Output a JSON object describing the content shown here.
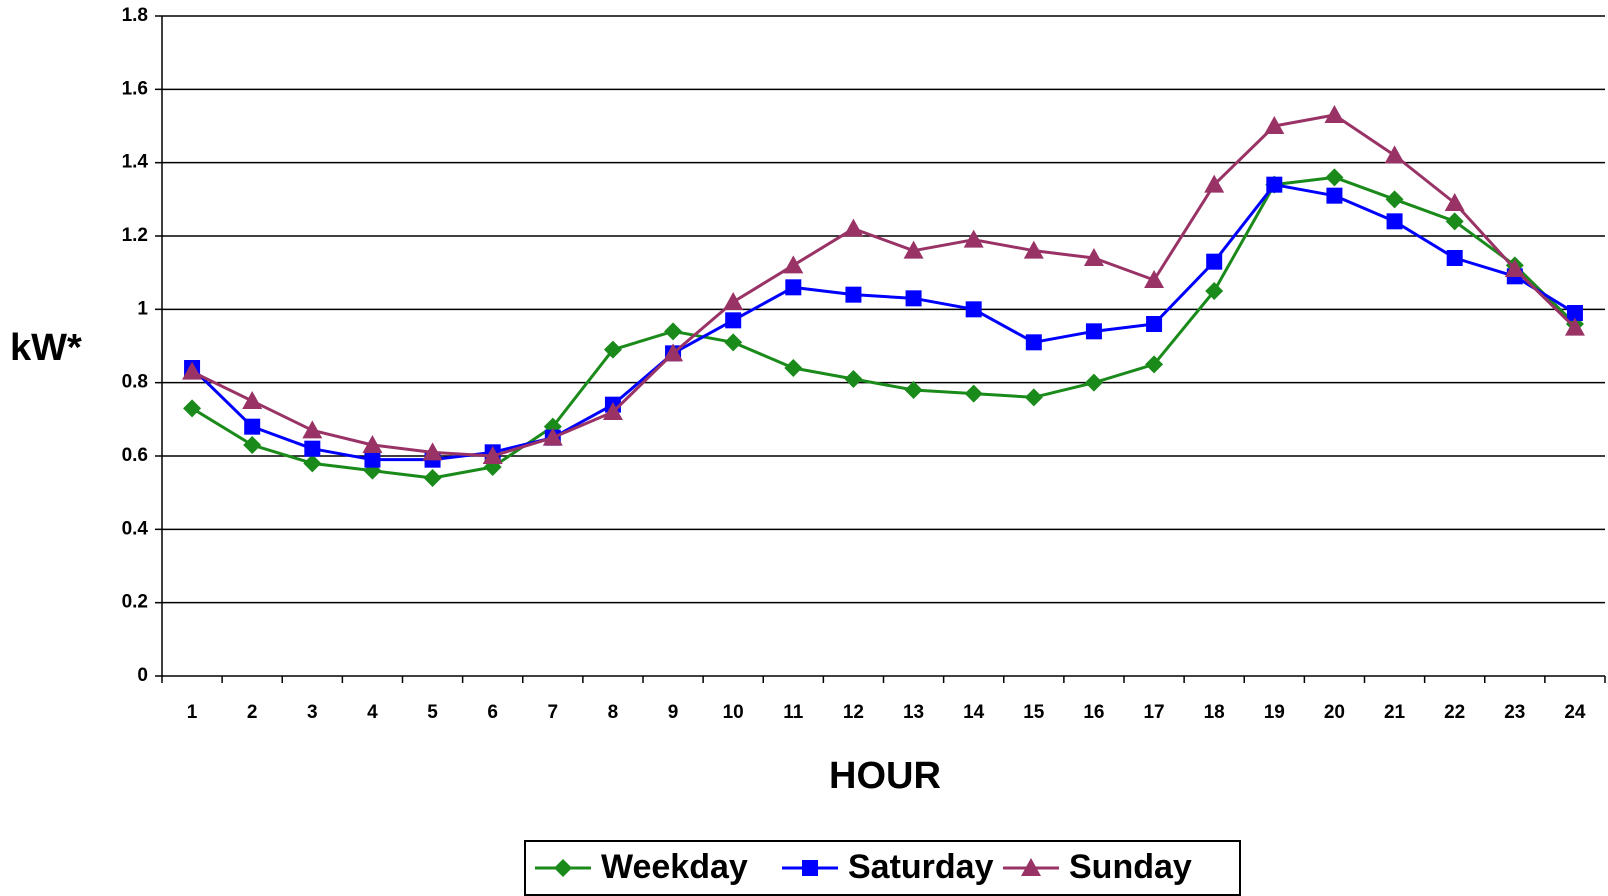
{
  "chart_data": {
    "type": "line",
    "xlabel": "HOUR",
    "ylabel": "kW*",
    "ylim": [
      0,
      1.8
    ],
    "yticks": [
      "0",
      "0.2",
      "0.4",
      "0.6",
      "0.8",
      "1",
      "1.2",
      "1.4",
      "1.6",
      "1.8"
    ],
    "categories": [
      "1",
      "2",
      "3",
      "4",
      "5",
      "6",
      "7",
      "8",
      "9",
      "10",
      "11",
      "12",
      "13",
      "14",
      "15",
      "16",
      "17",
      "18",
      "19",
      "20",
      "21",
      "22",
      "23",
      "24"
    ],
    "grid": "horizontal",
    "legend_position": "bottom-center",
    "series": [
      {
        "name": "Weekday",
        "color": "#1a8a1a",
        "marker": "diamond",
        "values": [
          0.73,
          0.63,
          0.58,
          0.56,
          0.54,
          0.57,
          0.68,
          0.89,
          0.94,
          0.91,
          0.84,
          0.81,
          0.78,
          0.77,
          0.76,
          0.8,
          0.85,
          1.05,
          1.34,
          1.36,
          1.3,
          1.24,
          1.12,
          0.96
        ]
      },
      {
        "name": "Saturday",
        "color": "#0000ff",
        "marker": "square",
        "values": [
          0.84,
          0.68,
          0.62,
          0.59,
          0.59,
          0.61,
          0.65,
          0.74,
          0.88,
          0.97,
          1.06,
          1.04,
          1.03,
          1.0,
          0.91,
          0.94,
          0.96,
          1.13,
          1.34,
          1.31,
          1.24,
          1.14,
          1.09,
          0.99
        ]
      },
      {
        "name": "Sunday",
        "color": "#993366",
        "marker": "triangle",
        "values": [
          0.83,
          0.75,
          0.67,
          0.63,
          0.61,
          0.6,
          0.65,
          0.72,
          0.88,
          1.02,
          1.12,
          1.22,
          1.16,
          1.19,
          1.16,
          1.14,
          1.08,
          1.34,
          1.5,
          1.53,
          1.42,
          1.29,
          1.11,
          0.95
        ]
      }
    ]
  }
}
